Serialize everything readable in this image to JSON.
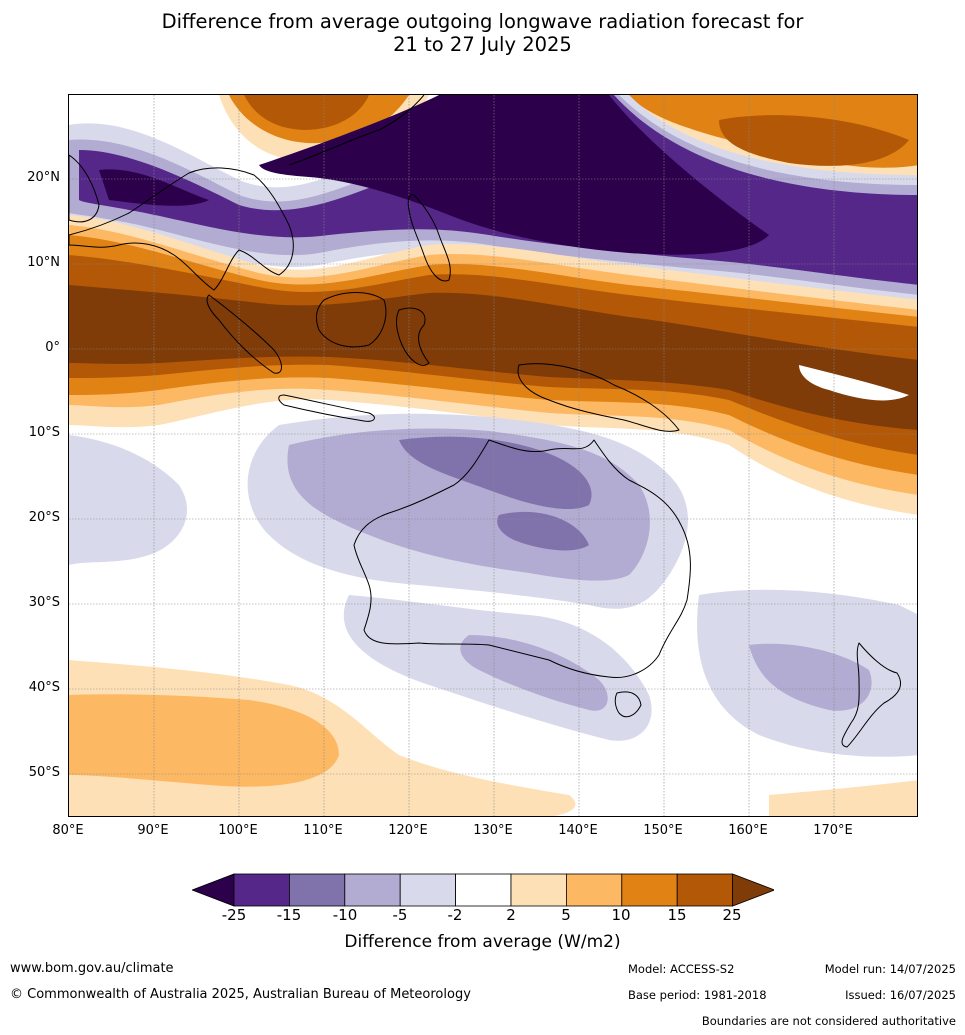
{
  "title_line1": "Difference from average outgoing longwave radiation forecast for",
  "title_line2": "21 to 27 July 2025",
  "lat_labels": [
    "20°N",
    "10°N",
    "0°",
    "10°S",
    "20°S",
    "30°S",
    "40°S",
    "50°S"
  ],
  "lon_labels": [
    "80°E",
    "90°E",
    "100°E",
    "110°E",
    "120°E",
    "130°E",
    "140°E",
    "150°E",
    "160°E",
    "170°E"
  ],
  "colorbar": {
    "ticks": [
      "-25",
      "-15",
      "-10",
      "-5",
      "-2",
      "2",
      "5",
      "10",
      "15",
      "25"
    ],
    "colors": [
      "#2d004b",
      "#542788",
      "#8073ac",
      "#b2abd2",
      "#d8daeb",
      "#ffffff",
      "#fee0b6",
      "#fdb863",
      "#e08214",
      "#b35806",
      "#7f3b08"
    ],
    "label": "Difference from average (W/m2)"
  },
  "footer": {
    "website": "www.bom.gov.au/climate",
    "copyright": "© Commonwealth of Australia 2025, Australian Bureau of Meteorology",
    "model": "Model: ACCESS-S2",
    "model_run": "Model run: 14/07/2025",
    "base_period": "Base period: 1981-2018",
    "issued": "Issued: 16/07/2025",
    "disclaimer": "Boundaries are not considered authoritative"
  }
}
